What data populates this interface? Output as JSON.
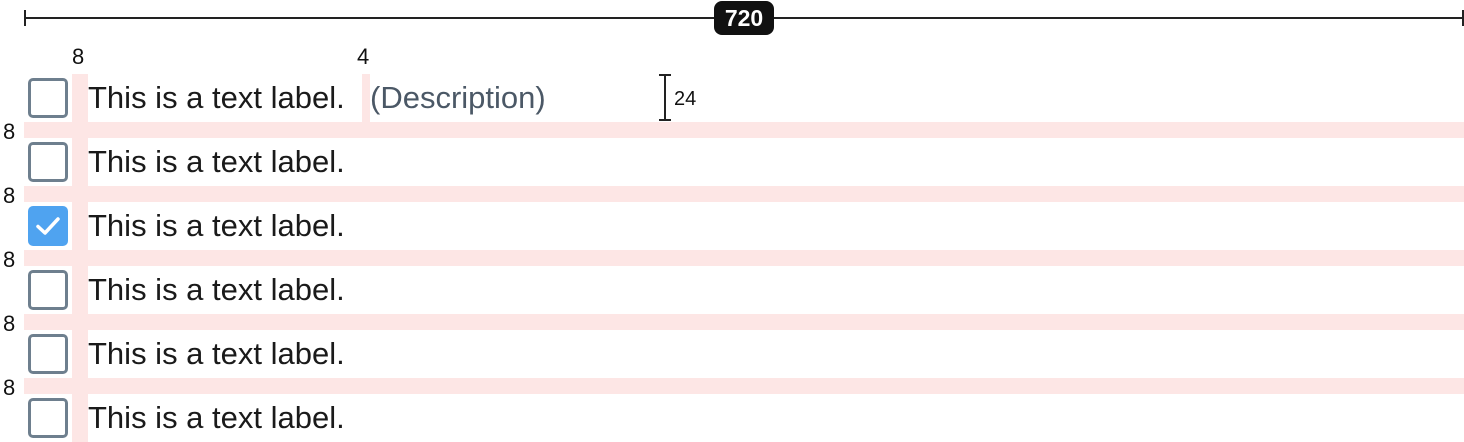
{
  "measure": {
    "width_label": "720",
    "icon_gap_label": "8",
    "desc_gap_label": "4",
    "row_height_label": "24",
    "row_gap_labels": [
      "8",
      "8",
      "8",
      "8",
      "8"
    ]
  },
  "colors": {
    "checked_fill": "#4fa3f0",
    "unchecked_border": "#6e7f8e",
    "spacing_overlay": "#fde6e5",
    "description_text": "#4b5866"
  },
  "checkboxes": [
    {
      "label": "This is a text label.",
      "description": "(Description)",
      "checked": false
    },
    {
      "label": "This is a text label.",
      "checked": false
    },
    {
      "label": "This is a text label.",
      "checked": true
    },
    {
      "label": "This is a text label.",
      "checked": false
    },
    {
      "label": "This is a text label.",
      "checked": false
    },
    {
      "label": "This is a text label.",
      "checked": false
    }
  ]
}
